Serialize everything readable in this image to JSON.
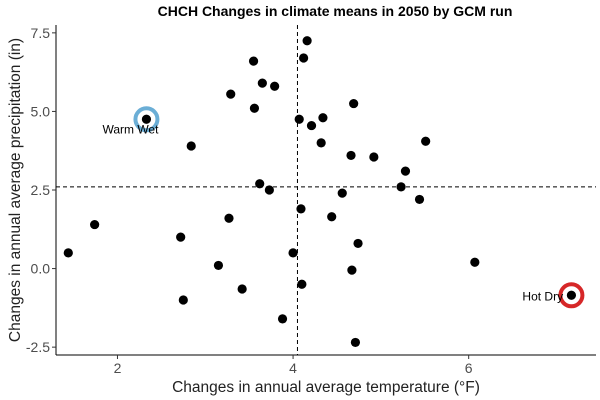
{
  "chart_data": {
    "type": "scatter",
    "title": "CHCH Changes in climate means in 2050 by GCM run",
    "xlabel": "Changes in annual average temperature (°F)",
    "ylabel": "Changes in annual average precipitation (in)",
    "xlim": [
      1.3,
      7.45
    ],
    "ylim": [
      -2.75,
      7.75
    ],
    "xticks": [
      2,
      4,
      6
    ],
    "yticks": [
      -2.5,
      0.0,
      2.5,
      5.0,
      7.5
    ],
    "ytick_labels": [
      "-2.5",
      "0.0",
      "2.5",
      "5.0",
      "7.5"
    ],
    "xtick_labels": [
      "2",
      "4",
      "6"
    ],
    "grid": false,
    "reference_lines": {
      "vertical_x": 4.05,
      "horizontal_y": 2.6
    },
    "colors": {
      "points": "#000000",
      "warm_wet_ring": "#6baed6",
      "hot_dry_ring": "#d62728"
    },
    "points": [
      {
        "x": 1.44,
        "y": 0.5
      },
      {
        "x": 1.74,
        "y": 1.4
      },
      {
        "x": 2.33,
        "y": 4.75
      },
      {
        "x": 2.72,
        "y": 1.0
      },
      {
        "x": 2.75,
        "y": -1.0
      },
      {
        "x": 2.84,
        "y": 3.9
      },
      {
        "x": 3.15,
        "y": 0.1
      },
      {
        "x": 3.27,
        "y": 1.6
      },
      {
        "x": 3.29,
        "y": 5.55
      },
      {
        "x": 3.42,
        "y": -0.65
      },
      {
        "x": 3.55,
        "y": 6.6
      },
      {
        "x": 3.56,
        "y": 5.1
      },
      {
        "x": 3.62,
        "y": 2.7
      },
      {
        "x": 3.65,
        "y": 5.9
      },
      {
        "x": 3.73,
        "y": 2.5
      },
      {
        "x": 3.79,
        "y": 5.8
      },
      {
        "x": 3.88,
        "y": -1.6
      },
      {
        "x": 4.0,
        "y": 0.5
      },
      {
        "x": 4.07,
        "y": 4.75
      },
      {
        "x": 4.09,
        "y": 1.9
      },
      {
        "x": 4.1,
        "y": -0.5
      },
      {
        "x": 4.12,
        "y": 6.7
      },
      {
        "x": 4.16,
        "y": 7.25
      },
      {
        "x": 4.21,
        "y": 4.55
      },
      {
        "x": 4.32,
        "y": 4.0
      },
      {
        "x": 4.34,
        "y": 4.8
      },
      {
        "x": 4.44,
        "y": 1.65
      },
      {
        "x": 4.56,
        "y": 2.4
      },
      {
        "x": 4.66,
        "y": 3.6
      },
      {
        "x": 4.67,
        "y": -0.05
      },
      {
        "x": 4.69,
        "y": 5.25
      },
      {
        "x": 4.71,
        "y": -2.35
      },
      {
        "x": 4.74,
        "y": 0.8
      },
      {
        "x": 4.92,
        "y": 3.55
      },
      {
        "x": 5.23,
        "y": 2.6
      },
      {
        "x": 5.28,
        "y": 3.1
      },
      {
        "x": 5.44,
        "y": 2.2
      },
      {
        "x": 5.51,
        "y": 4.05
      },
      {
        "x": 6.07,
        "y": 0.2
      },
      {
        "x": 7.17,
        "y": -0.85
      }
    ],
    "annotations": [
      {
        "label": "Warm Wet",
        "x": 2.33,
        "y": 4.75,
        "ring": "warm_wet_ring"
      },
      {
        "label": "Hot Dry",
        "x": 7.17,
        "y": -0.85,
        "ring": "hot_dry_ring"
      }
    ]
  }
}
